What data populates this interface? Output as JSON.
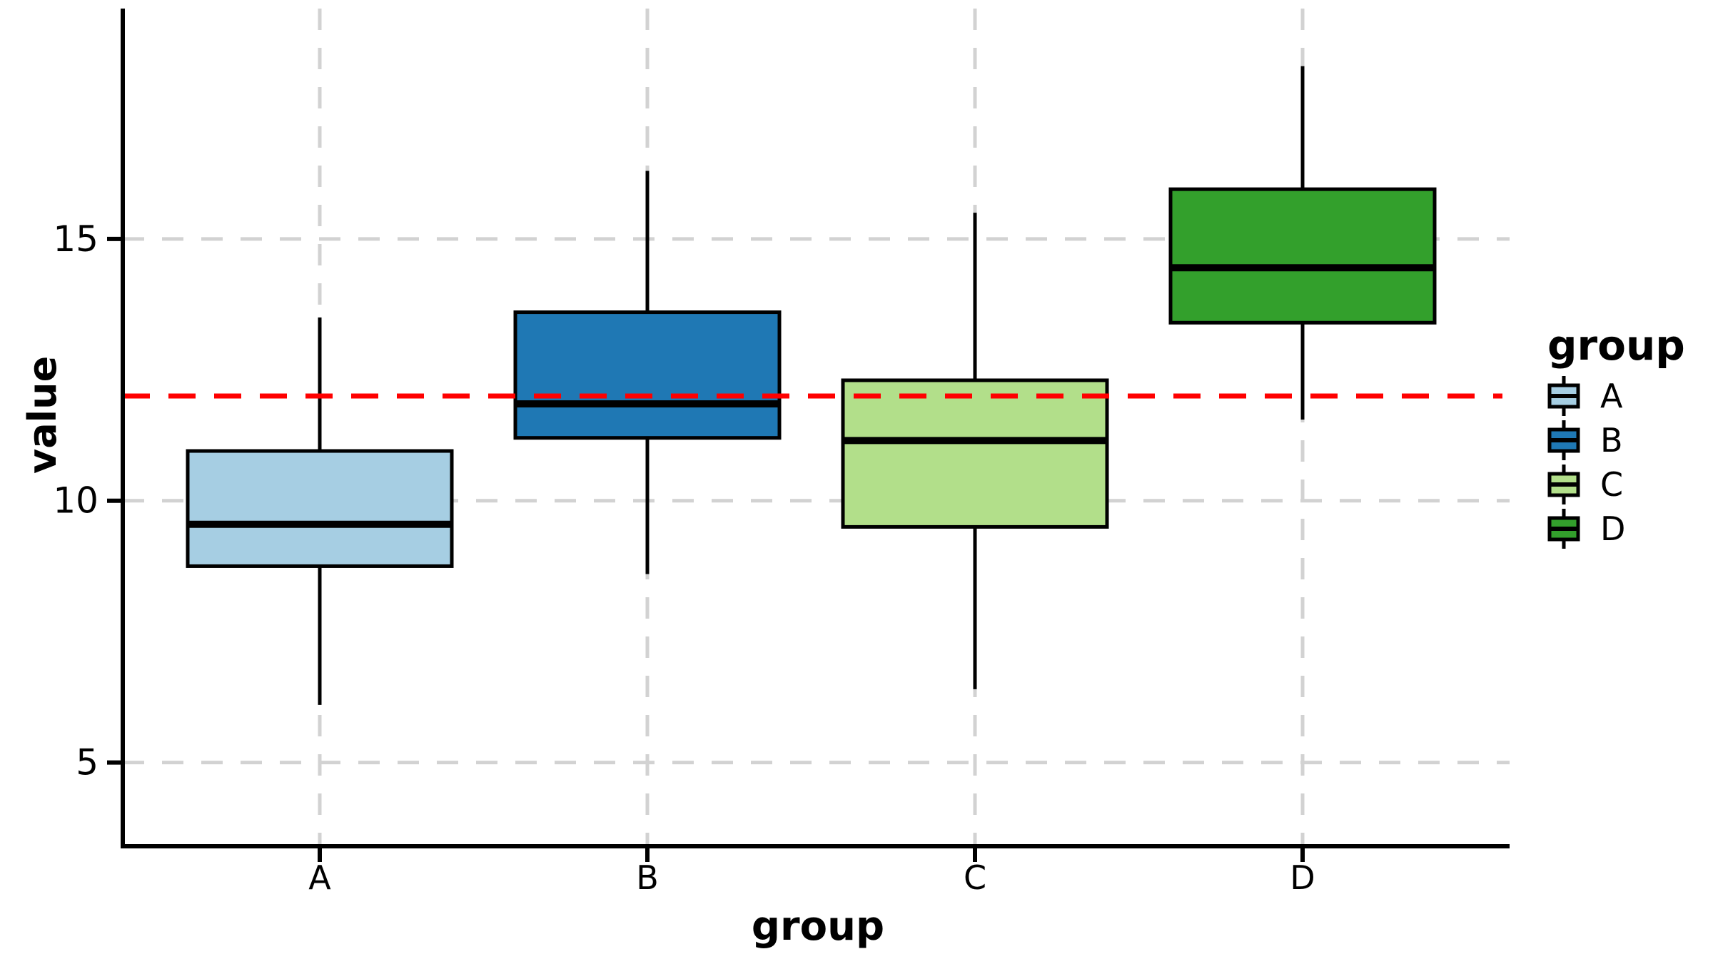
{
  "figure": {
    "background": "#ffffff",
    "text_color": "#000000"
  },
  "chart_data": {
    "type": "boxplot",
    "title": "",
    "xlabel": "group",
    "ylabel": "value",
    "categories": [
      "A",
      "B",
      "C",
      "D"
    ],
    "series": [
      {
        "name": "A",
        "fill": "#A6CEE3",
        "whisker_low": 6.1,
        "q1": 8.75,
        "median": 9.55,
        "q3": 10.95,
        "whisker_high": 13.5
      },
      {
        "name": "B",
        "fill": "#1F78B4",
        "whisker_low": 8.6,
        "q1": 11.2,
        "median": 11.85,
        "q3": 13.6,
        "whisker_high": 16.3
      },
      {
        "name": "C",
        "fill": "#B2DF8A",
        "whisker_low": 6.4,
        "q1": 9.5,
        "median": 11.15,
        "q3": 12.3,
        "whisker_high": 15.5
      },
      {
        "name": "D",
        "fill": "#33A02C",
        "whisker_low": 11.55,
        "q1": 13.4,
        "median": 14.45,
        "q3": 15.95,
        "whisker_high": 18.3
      }
    ],
    "reference_line": {
      "y": 12,
      "color": "#FF0000",
      "style": "dashed"
    },
    "y_ticks": [
      5,
      10,
      15
    ],
    "ylim": [
      3.4,
      19.4
    ],
    "grid": {
      "horizontal": true,
      "vertical": true,
      "style": "dashed",
      "color": "#D2D2D2"
    },
    "legend_position": "right",
    "box_border_color": "#000000",
    "median_color": "#000000",
    "whisker_color": "#000000"
  },
  "legend": {
    "title": "group",
    "items": [
      {
        "label": "A",
        "color": "#A6CEE3"
      },
      {
        "label": "B",
        "color": "#1F78B4"
      },
      {
        "label": "C",
        "color": "#B2DF8A"
      },
      {
        "label": "D",
        "color": "#33A02C"
      }
    ]
  }
}
